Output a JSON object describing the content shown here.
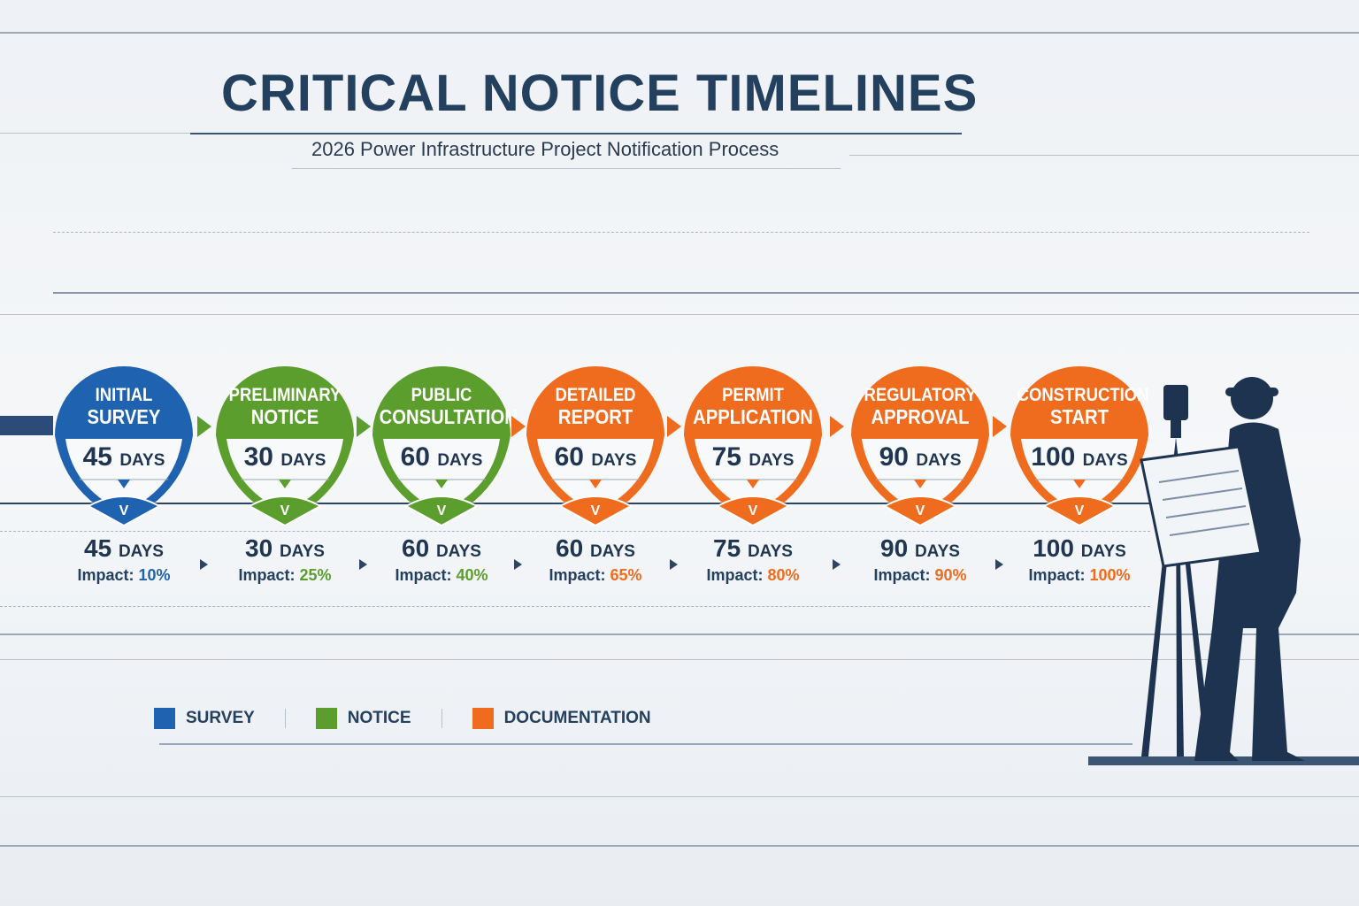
{
  "title": "CRITICAL NOTICE TIMELINES",
  "subtitle": "2026 Power Infrastructure Project Notification Process",
  "colors": {
    "survey": "#1f63b0",
    "notice": "#5c9e2e",
    "documentation": "#ef6c1f",
    "text": "#24405f"
  },
  "stages": [
    {
      "title1": "INITIAL",
      "title2": "SURVEY",
      "days": "45",
      "unit": "DAYS",
      "impact_label": "Impact:",
      "impact": "10%",
      "category": "survey"
    },
    {
      "title1": "PRELIMINARY",
      "title2": "NOTICE",
      "days": "30",
      "unit": "DAYS",
      "impact_label": "Impact:",
      "impact": "25%",
      "category": "notice"
    },
    {
      "title1": "PUBLIC",
      "title2": "CONSULTATION",
      "days": "60",
      "unit": "DAYS",
      "impact_label": "Impact:",
      "impact": "40%",
      "category": "notice"
    },
    {
      "title1": "DETAILED",
      "title2": "REPORT",
      "days": "60",
      "unit": "DAYS",
      "impact_label": "Impact:",
      "impact": "65%",
      "category": "documentation"
    },
    {
      "title1": "PERMIT",
      "title2": "APPLICATION",
      "days": "75",
      "unit": "DAYS",
      "impact_label": "Impact:",
      "impact": "80%",
      "category": "documentation"
    },
    {
      "title1": "REGULATORY",
      "title2": "APPROVAL",
      "days": "90",
      "unit": "DAYS",
      "impact_label": "Impact:",
      "impact": "90%",
      "category": "documentation"
    },
    {
      "title1": "CONSTRUCTION",
      "title2": "START",
      "days": "100",
      "unit": "DAYS",
      "impact_label": "Impact:",
      "impact": "100%",
      "category": "documentation"
    }
  ],
  "legend": [
    {
      "label": "SURVEY",
      "category": "survey"
    },
    {
      "label": "NOTICE",
      "category": "notice"
    },
    {
      "label": "DOCUMENTATION",
      "category": "documentation"
    }
  ]
}
